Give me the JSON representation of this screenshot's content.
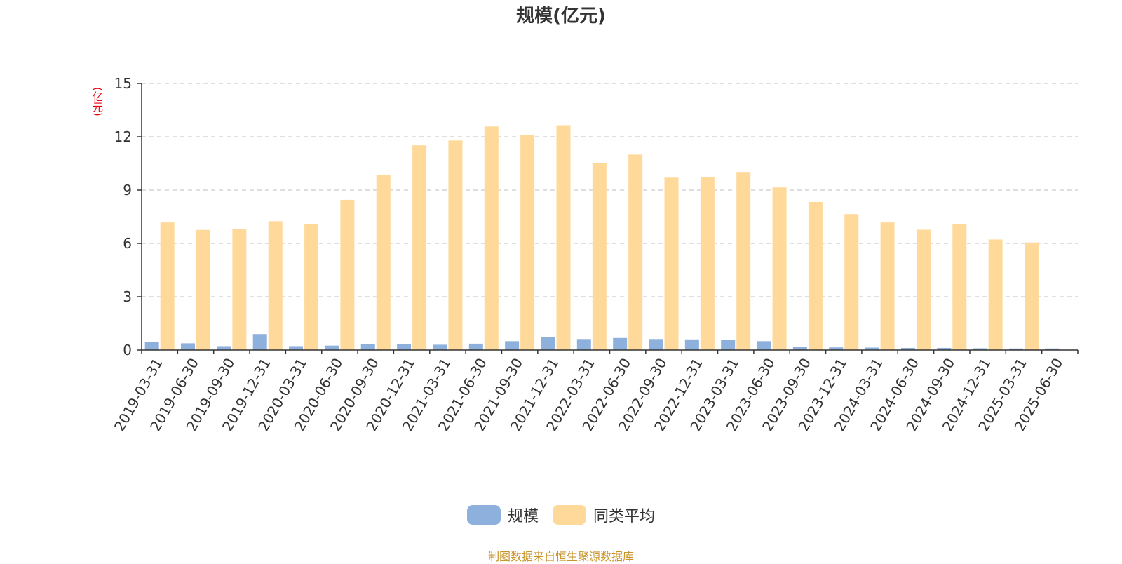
{
  "chart_data": {
    "type": "bar",
    "title": "规模(亿元)",
    "unit_label": "(亿元)",
    "ylim": [
      0,
      15
    ],
    "yticks": [
      0,
      3,
      6,
      9,
      12,
      15
    ],
    "grid": true,
    "legend_position": "bottom-center",
    "source": "制图数据来自恒生聚源数据库",
    "categories": [
      "2019-03-31",
      "2019-06-30",
      "2019-09-30",
      "2019-12-31",
      "2020-03-31",
      "2020-06-30",
      "2020-09-30",
      "2020-12-31",
      "2021-03-31",
      "2021-06-30",
      "2021-09-30",
      "2021-12-31",
      "2022-03-31",
      "2022-06-30",
      "2022-09-30",
      "2022-12-31",
      "2023-03-31",
      "2023-06-30",
      "2023-09-30",
      "2023-12-31",
      "2024-03-31",
      "2024-06-30",
      "2024-09-30",
      "2024-12-31",
      "2025-03-31",
      "2025-06-30"
    ],
    "series": [
      {
        "name": "规模",
        "color": "#8eb0dd",
        "values": [
          0.45,
          0.38,
          0.22,
          0.9,
          0.22,
          0.25,
          0.35,
          0.32,
          0.3,
          0.36,
          0.5,
          0.72,
          0.62,
          0.68,
          0.62,
          0.6,
          0.58,
          0.5,
          0.17,
          0.15,
          0.14,
          0.12,
          0.12,
          0.1,
          0.09,
          0.09
        ]
      },
      {
        "name": "同类平均",
        "color": "#ffd99a",
        "values": [
          7.18,
          6.76,
          6.8,
          7.25,
          7.1,
          8.45,
          9.87,
          11.52,
          11.79,
          12.58,
          12.08,
          12.65,
          10.5,
          11.0,
          9.7,
          9.71,
          10.02,
          9.15,
          8.33,
          7.65,
          7.18,
          6.77,
          7.1,
          6.22,
          6.05,
          null
        ]
      }
    ]
  }
}
